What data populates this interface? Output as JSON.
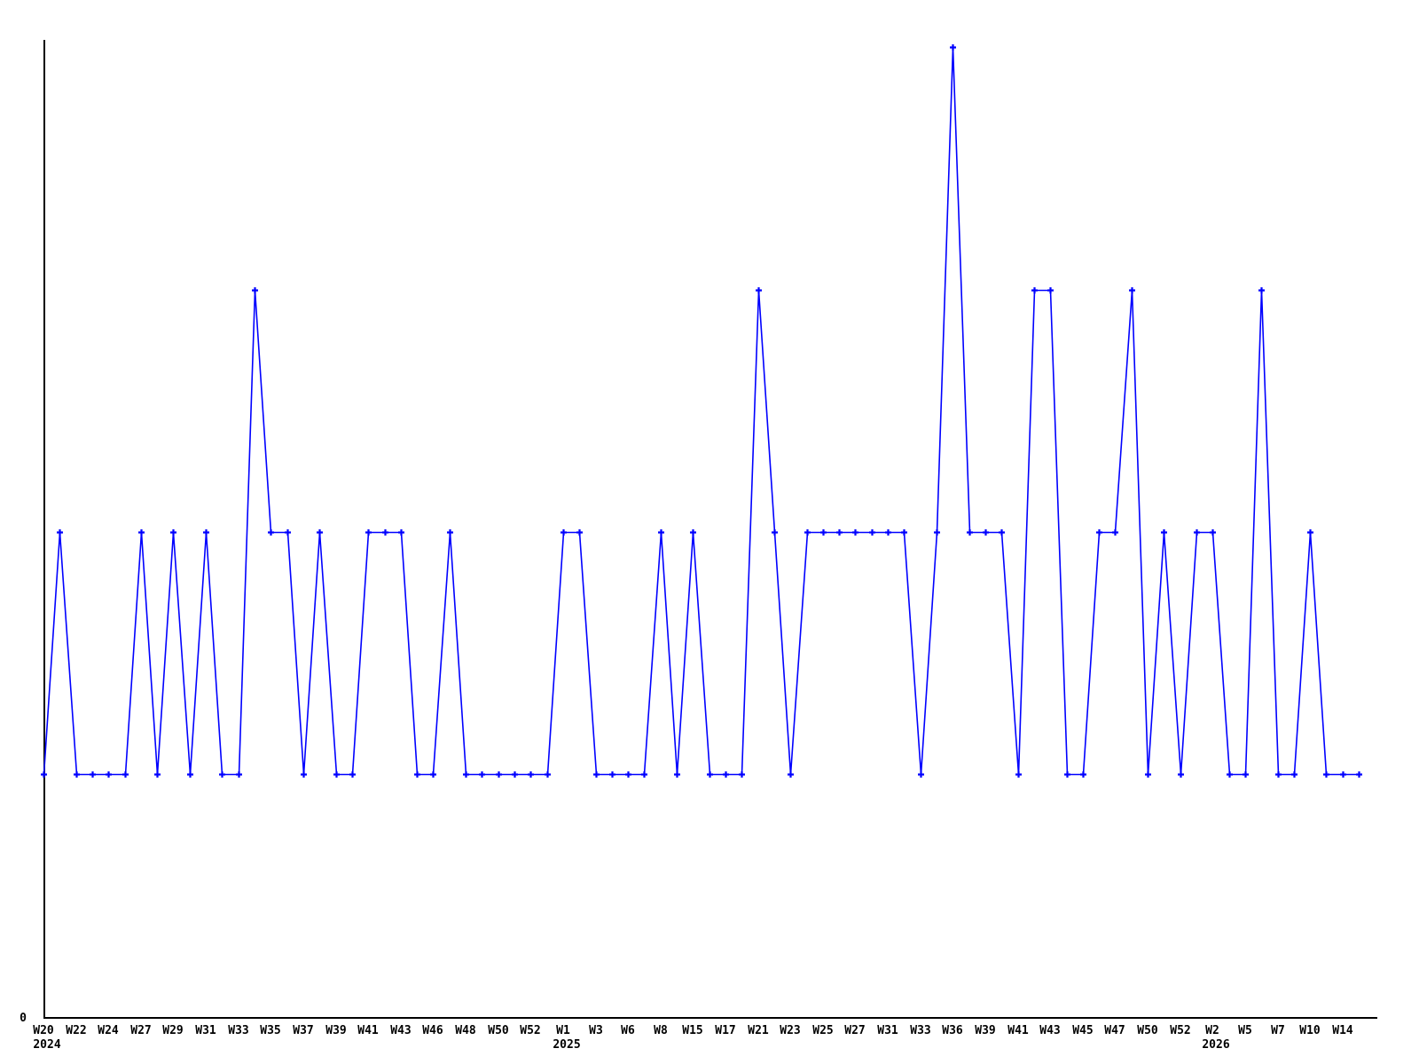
{
  "chart_data": {
    "type": "line",
    "title": "",
    "xlabel": "",
    "ylabel": "",
    "grid": false,
    "legend": null,
    "line_color": "#0000ff",
    "axis_color": "#000000",
    "text_color": "#000000",
    "background_color": "#ffffff",
    "marker": "plus",
    "y_origin_label": "0",
    "ylim": [
      0,
      4.1
    ],
    "x_tick_every": 2,
    "x_tick_labels": [
      "W20",
      "W22",
      "W24",
      "W27",
      "W29",
      "W31",
      "W33",
      "W35",
      "W37",
      "W39",
      "W41",
      "W43",
      "W46",
      "W48",
      "W50",
      "W52",
      "W1",
      "W3",
      "W6",
      "W8",
      "W15",
      "W17",
      "W21",
      "W23",
      "W25",
      "W27",
      "W31",
      "W33",
      "W36",
      "W39",
      "W41",
      "W43",
      "W45",
      "W47",
      "W50",
      "W52",
      "W2",
      "W5",
      "W7",
      "W10",
      "W14"
    ],
    "year_labels": [
      {
        "tick_index": 0,
        "text": "2024"
      },
      {
        "tick_index": 16,
        "text": "2025"
      },
      {
        "tick_index": 36,
        "text": "2026"
      }
    ],
    "values": [
      1,
      2,
      1,
      1,
      1,
      1,
      2,
      1,
      2,
      1,
      2,
      1,
      1,
      3,
      2,
      2,
      1,
      2,
      1,
      1,
      2,
      2,
      2,
      1,
      1,
      2,
      1,
      1,
      1,
      1,
      1,
      1,
      2,
      2,
      1,
      1,
      1,
      1,
      2,
      1,
      2,
      1,
      1,
      1,
      3,
      2,
      1,
      2,
      2,
      2,
      2,
      2,
      2,
      2,
      1,
      2,
      4,
      2,
      2,
      2,
      1,
      3,
      3,
      1,
      1,
      2,
      2,
      3,
      1,
      2,
      1,
      2,
      2,
      1,
      1,
      3,
      1,
      1,
      2,
      1,
      1,
      1
    ]
  }
}
